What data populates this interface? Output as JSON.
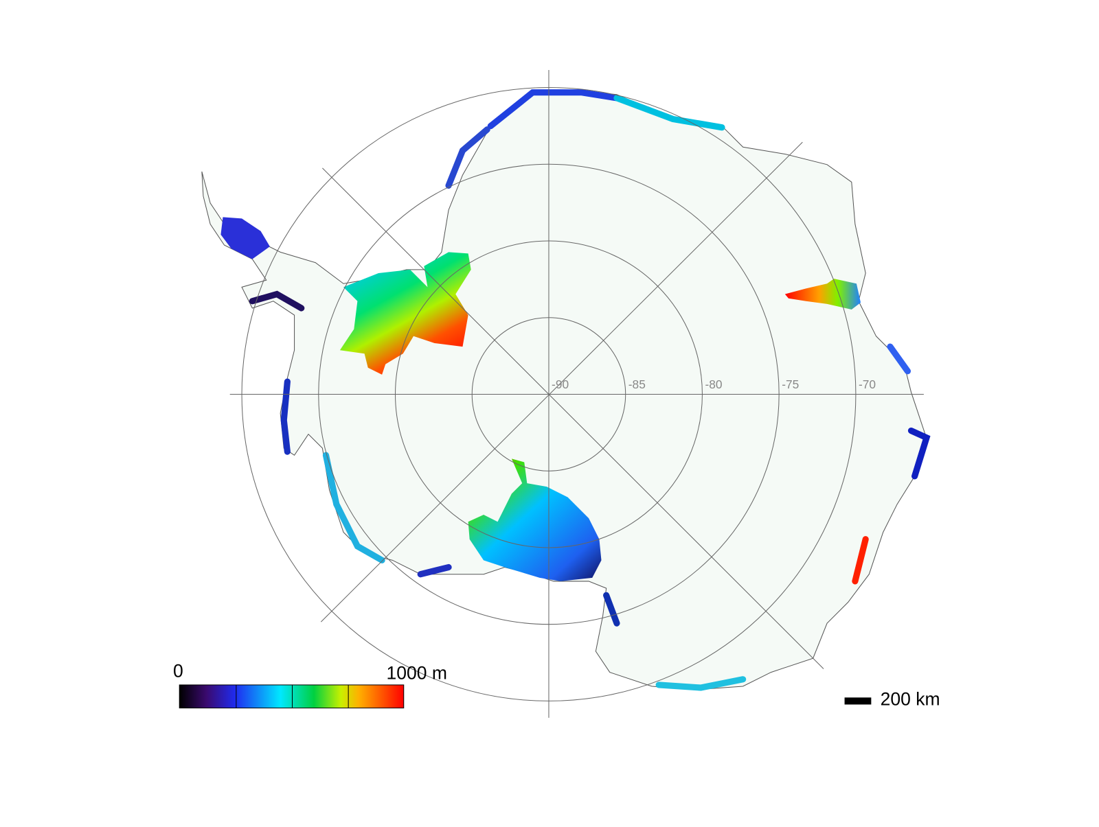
{
  "map": {
    "latitude_labels": [
      "-90",
      "-85",
      "-80",
      "-75",
      "-70"
    ],
    "colorbar": {
      "min_label": "0",
      "max_label": "1000 m"
    },
    "scale_bar": "200 km"
  }
}
